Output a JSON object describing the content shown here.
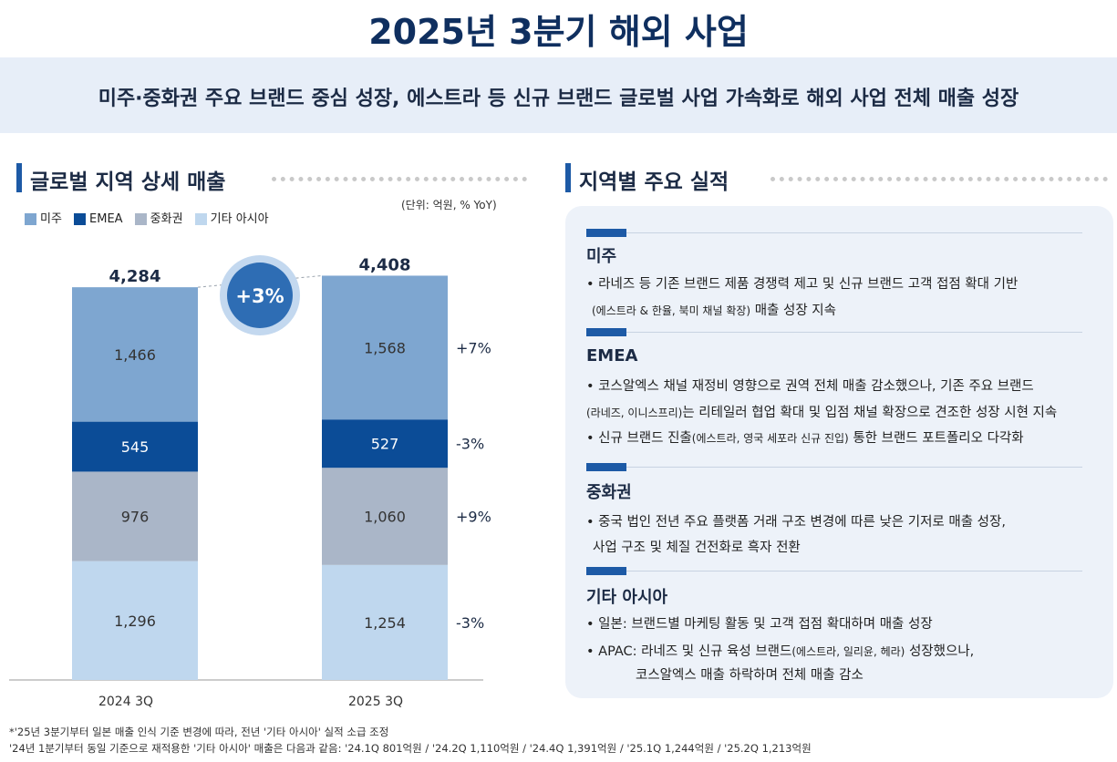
{
  "title": "2025년 3분기 해외 사업",
  "subtitle": "미주·중화권 주요 브랜드 중심 성장, 에스트라 등 신규 브랜드 글로벌 사업 가속화로 해외 사업 전체 매출 성장",
  "left_section": {
    "heading": "글로벌 지역 상세 매출",
    "unit": "(단위: 억원, % YoY)"
  },
  "right_section": {
    "heading": "지역별 주요 실적",
    "regions": [
      {
        "name": "미주",
        "lines": [
          "• 라네즈 등 기존 브랜드 제품 경쟁력 제고 및 신규 브랜드 고객 접점 확대 기반",
          {
            "small": "(에스트라 & 한율, 북미 채널 확장)",
            "text": " 매출 성장 지속"
          }
        ]
      },
      {
        "name": "EMEA",
        "lines": [
          "• 코스알엑스 채널 재정비 영향으로 권역 전체 매출 감소했으나, 기존 주요 브랜드",
          {
            "small": "(라네즈, 이니스프리)",
            "text": "는 리테일러 협업 확대 및 입점 채널 확장으로 견조한 성장 시현 지속"
          },
          {
            "pre": "• 신규 브랜드 진출",
            "small": "(에스트라, 영국 세포라 신규 진입)",
            "text": " 통한 브랜드 포트폴리오 다각화"
          }
        ]
      },
      {
        "name": "중화권",
        "lines": [
          "• 중국 법인 전년 주요 플랫폼 거래 구조 변경에 따른 낮은 기저로 매출 성장,",
          "사업 구조 및 체질 건전화로 흑자 전환"
        ]
      },
      {
        "name": "기타 아시아",
        "lines": [
          "• 일본: 브랜드별 마케팅 활동 및 고객 접점 확대하며 매출 성장",
          {
            "pre": "• APAC: 라네즈 및 신규 육성 브랜드",
            "small": "(에스트라, 일리윤, 헤라)",
            "text": " 성장했으나,"
          },
          "코스알엑스 매출 하락하며 전체 매출 감소"
        ]
      }
    ]
  },
  "colors": {
    "미주": "#7ea6d0",
    "EMEA": "#0b4c97",
    "중화권": "#aab6c8",
    "기타 아시아": "#bfd7ee",
    "accent": "#2e6db4"
  },
  "chart_data": {
    "type": "bar",
    "stacked": true,
    "categories": [
      "2024 3Q",
      "2025 3Q"
    ],
    "series": [
      {
        "name": "기타 아시아",
        "values": [
          1296,
          1254
        ],
        "yoy": "-3%"
      },
      {
        "name": "중화권",
        "values": [
          976,
          1060
        ],
        "yoy": "+9%"
      },
      {
        "name": "EMEA",
        "values": [
          545,
          527
        ],
        "yoy": "-3%"
      },
      {
        "name": "미주",
        "values": [
          1466,
          1568
        ],
        "yoy": "+7%"
      }
    ],
    "totals": [
      "4,284",
      "4,408"
    ],
    "total_growth": "+3%",
    "legend": [
      "미주",
      "EMEA",
      "중화권",
      "기타 아시아"
    ],
    "ylim": [
      0,
      4500
    ]
  },
  "footnotes": [
    "*'25년 3분기부터 일본 매출 인식 기준 변경에 따라, 전년 '기타 아시아' 실적 소급 조정",
    " '24년 1분기부터 동일 기준으로 재적용한 '기타 아시아' 매출은 다음과 같음: '24.1Q 801억원 / '24.2Q 1,110억원 / '24.4Q 1,391억원 / '25.1Q 1,244억원 / '25.2Q 1,213억원"
  ]
}
